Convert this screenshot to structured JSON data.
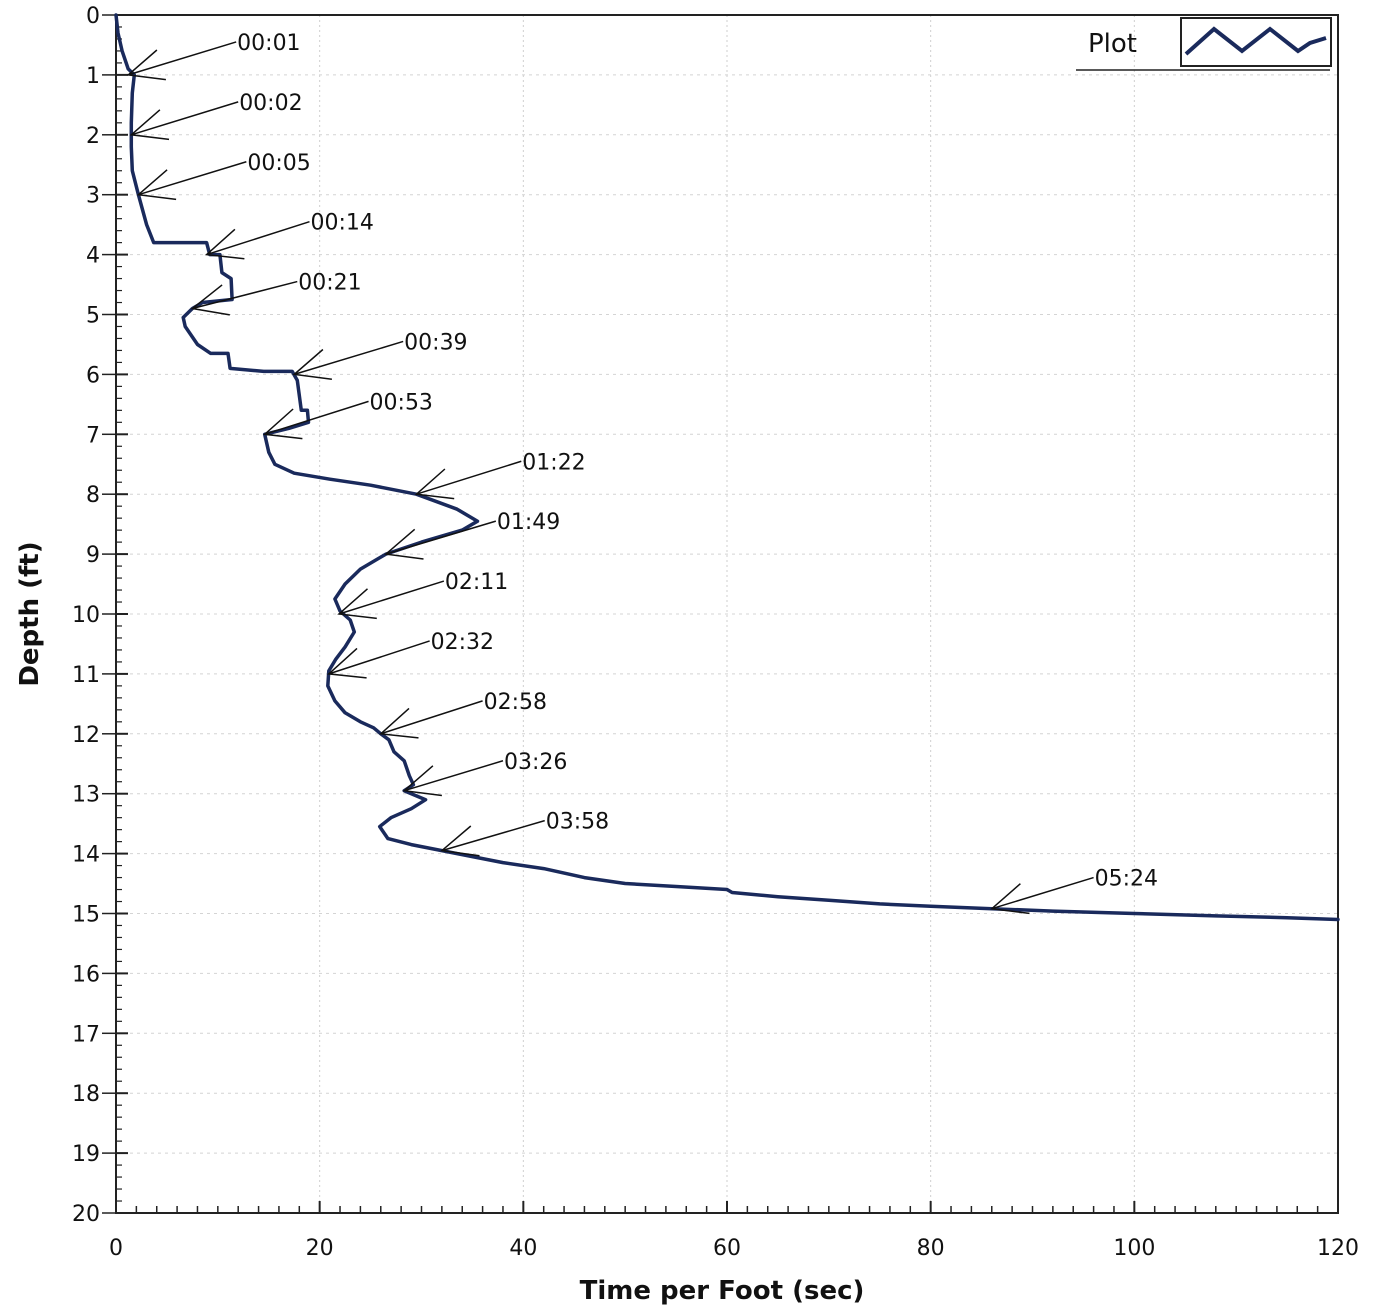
{
  "chart_data": {
    "type": "line",
    "xlabel": "Time per Foot (sec)",
    "ylabel": "Depth (ft)",
    "xlim": [
      0,
      120
    ],
    "ylim": [
      20,
      0
    ],
    "y_inverted": true,
    "x_ticks": [
      0,
      20,
      40,
      60,
      80,
      100,
      120
    ],
    "y_ticks": [
      0,
      1,
      2,
      3,
      4,
      5,
      6,
      7,
      8,
      9,
      10,
      11,
      12,
      13,
      14,
      15,
      16,
      17,
      18,
      19,
      20
    ],
    "grid": true,
    "legend_position": "top-right",
    "line_color": "#1a2a5c",
    "series": [
      {
        "name": "Plot",
        "points": [
          [
            0.0,
            0.0
          ],
          [
            0.2,
            0.3
          ],
          [
            0.6,
            0.6
          ],
          [
            1.2,
            0.9
          ],
          [
            1.8,
            1.0
          ],
          [
            1.6,
            1.3
          ],
          [
            1.5,
            1.8
          ],
          [
            1.5,
            2.2
          ],
          [
            1.6,
            2.6
          ],
          [
            2.2,
            3.0
          ],
          [
            3.0,
            3.5
          ],
          [
            3.7,
            3.8
          ],
          [
            8.9,
            3.8
          ],
          [
            9.2,
            4.0
          ],
          [
            10.2,
            4.0
          ],
          [
            10.4,
            4.3
          ],
          [
            11.3,
            4.4
          ],
          [
            11.4,
            4.75
          ],
          [
            8.5,
            4.8
          ],
          [
            7.5,
            4.9
          ],
          [
            6.6,
            5.05
          ],
          [
            6.8,
            5.2
          ],
          [
            8.0,
            5.5
          ],
          [
            9.3,
            5.65
          ],
          [
            11.0,
            5.65
          ],
          [
            11.2,
            5.9
          ],
          [
            14.5,
            5.95
          ],
          [
            17.3,
            5.95
          ],
          [
            17.8,
            6.1
          ],
          [
            18.2,
            6.6
          ],
          [
            18.8,
            6.6
          ],
          [
            18.9,
            6.8
          ],
          [
            17.0,
            6.9
          ],
          [
            14.6,
            7.0
          ],
          [
            15.0,
            7.3
          ],
          [
            15.6,
            7.5
          ],
          [
            17.5,
            7.65
          ],
          [
            21.0,
            7.75
          ],
          [
            25.0,
            7.85
          ],
          [
            29.5,
            8.0
          ],
          [
            33.5,
            8.25
          ],
          [
            35.5,
            8.45
          ],
          [
            34.0,
            8.6
          ],
          [
            30.0,
            8.8
          ],
          [
            26.5,
            9.0
          ],
          [
            24.0,
            9.25
          ],
          [
            22.5,
            9.5
          ],
          [
            21.5,
            9.75
          ],
          [
            22.0,
            9.95
          ],
          [
            23.0,
            10.1
          ],
          [
            23.4,
            10.3
          ],
          [
            22.5,
            10.55
          ],
          [
            21.6,
            10.75
          ],
          [
            20.9,
            10.95
          ],
          [
            20.8,
            11.2
          ],
          [
            21.5,
            11.45
          ],
          [
            22.5,
            11.65
          ],
          [
            24.0,
            11.8
          ],
          [
            25.3,
            11.9
          ],
          [
            26.0,
            12.0
          ],
          [
            26.8,
            12.1
          ],
          [
            27.3,
            12.3
          ],
          [
            28.3,
            12.45
          ],
          [
            28.8,
            12.7
          ],
          [
            29.2,
            12.85
          ],
          [
            28.3,
            12.95
          ],
          [
            30.4,
            13.1
          ],
          [
            29.0,
            13.25
          ],
          [
            27.0,
            13.4
          ],
          [
            25.9,
            13.55
          ],
          [
            26.7,
            13.75
          ],
          [
            29.0,
            13.85
          ],
          [
            32.0,
            13.95
          ],
          [
            35.0,
            14.05
          ],
          [
            38.0,
            14.15
          ],
          [
            42.0,
            14.25
          ],
          [
            46.0,
            14.4
          ],
          [
            50.0,
            14.5
          ],
          [
            55.0,
            14.55
          ],
          [
            60.0,
            14.6
          ],
          [
            60.5,
            14.65
          ],
          [
            65.0,
            14.72
          ],
          [
            70.0,
            14.78
          ],
          [
            75.0,
            14.84
          ],
          [
            80.0,
            14.88
          ],
          [
            86.0,
            14.92
          ],
          [
            92.0,
            14.96
          ],
          [
            100.0,
            15.0
          ],
          [
            108.0,
            15.04
          ],
          [
            115.0,
            15.07
          ],
          [
            120.0,
            15.1
          ]
        ]
      }
    ],
    "annotations": [
      {
        "text": "00:01",
        "label": [
          11.8,
          0.45
        ],
        "target": [
          1.2,
          1.0
        ]
      },
      {
        "text": "00:02",
        "label": [
          12.0,
          1.45
        ],
        "target": [
          1.5,
          2.0
        ]
      },
      {
        "text": "00:05",
        "label": [
          12.8,
          2.45
        ],
        "target": [
          2.2,
          3.0
        ]
      },
      {
        "text": "00:14",
        "label": [
          19.0,
          3.45
        ],
        "target": [
          8.9,
          4.0
        ]
      },
      {
        "text": "00:21",
        "label": [
          17.8,
          4.45
        ],
        "target": [
          7.5,
          4.9
        ]
      },
      {
        "text": "00:39",
        "label": [
          28.2,
          5.45
        ],
        "target": [
          17.5,
          6.0
        ]
      },
      {
        "text": "00:53",
        "label": [
          24.8,
          6.45
        ],
        "target": [
          14.6,
          7.0
        ]
      },
      {
        "text": "01:22",
        "label": [
          39.8,
          7.45
        ],
        "target": [
          29.5,
          8.0
        ]
      },
      {
        "text": "01:49",
        "label": [
          37.3,
          8.45
        ],
        "target": [
          26.5,
          9.0
        ]
      },
      {
        "text": "02:11",
        "label": [
          32.2,
          9.45
        ],
        "target": [
          21.9,
          10.0
        ]
      },
      {
        "text": "02:32",
        "label": [
          30.8,
          10.45
        ],
        "target": [
          20.9,
          11.0
        ]
      },
      {
        "text": "02:58",
        "label": [
          36.0,
          11.45
        ],
        "target": [
          26.0,
          12.0
        ]
      },
      {
        "text": "03:26",
        "label": [
          38.0,
          12.45
        ],
        "target": [
          28.3,
          12.95
        ]
      },
      {
        "text": "03:58",
        "label": [
          42.1,
          13.45
        ],
        "target": [
          32.0,
          13.95
        ]
      },
      {
        "text": "05:24",
        "label": [
          96.0,
          14.4
        ],
        "target": [
          86.0,
          14.92
        ]
      }
    ]
  }
}
